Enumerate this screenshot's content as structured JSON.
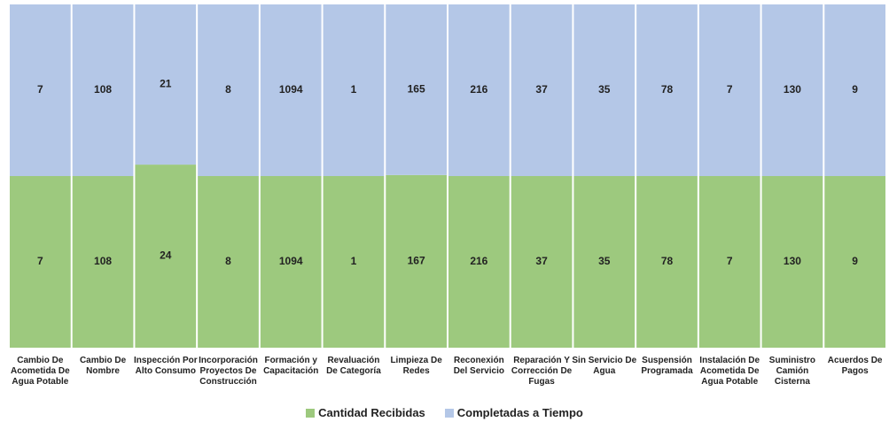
{
  "chart_data": {
    "type": "bar",
    "stacked": true,
    "normalized": true,
    "categories": [
      "Cambio De Acometida De Agua Potable",
      "Cambio De Nombre",
      "Inspección Por Alto Consumo",
      "Incorporación Proyectos De Construcción",
      "Formación y Capacitación",
      "Revaluación De Categoría",
      "Limpieza De Redes",
      "Reconexión Del Servicio",
      "Reparación Y Corrección De Fugas",
      "Sin Servicio De Agua",
      "Suspensión Programada",
      "Instalación De Acometida De Agua Potable",
      "Suministro Camión Cisterna",
      "Acuerdos De Pagos"
    ],
    "series": [
      {
        "name": "Cantidad Recibidas",
        "color": "#9dc97e",
        "values": [
          7,
          108,
          24,
          8,
          1094,
          1,
          167,
          216,
          37,
          35,
          78,
          7,
          130,
          9
        ]
      },
      {
        "name": "Completadas a Tiempo",
        "color": "#b4c7e7",
        "values": [
          7,
          108,
          21,
          8,
          1094,
          1,
          165,
          216,
          37,
          35,
          78,
          7,
          130,
          9
        ]
      }
    ],
    "legend": "bottom"
  }
}
